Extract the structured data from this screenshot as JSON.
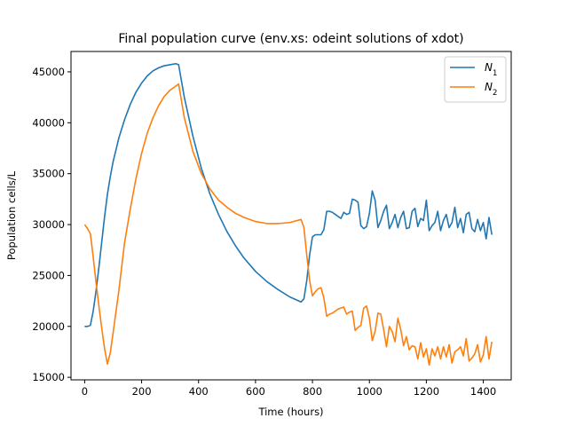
{
  "chart_data": {
    "type": "line",
    "title": "Final population curve (env.xs: odeint solutions of xdot)",
    "xlabel": "Time (hours)",
    "ylabel": "Population cells/L",
    "xlim": [
      -48,
      1498
    ],
    "ylim": [
      14750,
      47000
    ],
    "xticks": [
      0,
      200,
      400,
      600,
      800,
      1000,
      1200,
      1400
    ],
    "xtick_labels": [
      "0",
      "200",
      "400",
      "600",
      "800",
      "1000",
      "1200",
      "1400"
    ],
    "yticks": [
      15000,
      20000,
      25000,
      30000,
      35000,
      40000,
      45000
    ],
    "ytick_labels": [
      "15000",
      "20000",
      "25000",
      "30000",
      "35000",
      "40000",
      "45000"
    ],
    "grid": false,
    "legend_position": "top-right",
    "series": [
      {
        "name": "N",
        "subscript": "1",
        "color": "#1f77b4",
        "x": [
          0,
          10,
          20,
          30,
          40,
          50,
          60,
          70,
          80,
          90,
          100,
          120,
          140,
          160,
          180,
          200,
          220,
          240,
          260,
          280,
          300,
          320,
          330,
          350,
          380,
          410,
          440,
          470,
          500,
          530,
          560,
          600,
          640,
          680,
          720,
          760,
          770,
          780,
          790,
          800,
          810,
          820,
          830,
          840,
          850,
          860,
          870,
          880,
          890,
          900,
          910,
          920,
          930,
          940,
          950,
          960,
          970,
          980,
          990,
          1000,
          1010,
          1020,
          1030,
          1040,
          1050,
          1060,
          1070,
          1080,
          1090,
          1100,
          1110,
          1120,
          1130,
          1140,
          1150,
          1160,
          1170,
          1180,
          1190,
          1200,
          1210,
          1220,
          1230,
          1240,
          1250,
          1260,
          1270,
          1280,
          1290,
          1300,
          1310,
          1320,
          1330,
          1340,
          1350,
          1360,
          1370,
          1380,
          1390,
          1400,
          1410,
          1420,
          1430
        ],
        "y": [
          20000,
          20000,
          20100,
          21500,
          23500,
          25800,
          28300,
          30800,
          33000,
          34700,
          36200,
          38500,
          40300,
          41800,
          43000,
          43900,
          44600,
          45100,
          45400,
          45600,
          45700,
          45800,
          45700,
          42500,
          38700,
          35500,
          33000,
          31000,
          29300,
          27900,
          26700,
          25400,
          24400,
          23600,
          22900,
          22400,
          22700,
          24500,
          27000,
          28800,
          29000,
          29000,
          29000,
          29500,
          31300,
          31300,
          31200,
          31000,
          30800,
          30600,
          31200,
          31000,
          31100,
          32500,
          32400,
          32200,
          29900,
          29600,
          29800,
          31100,
          33300,
          32400,
          29700,
          30400,
          31300,
          31900,
          29600,
          30200,
          31000,
          29700,
          30700,
          31300,
          29600,
          29700,
          31300,
          31600,
          29800,
          30600,
          30400,
          32400,
          29400,
          29900,
          30200,
          31300,
          29400,
          30400,
          31000,
          29700,
          30200,
          31700,
          29700,
          30600,
          29200,
          31000,
          31200,
          29600,
          29300,
          30500,
          29400,
          30200,
          28600,
          30700,
          29000
        ]
      },
      {
        "name": "N",
        "subscript": "2",
        "color": "#ff7f0e",
        "x": [
          0,
          10,
          20,
          30,
          40,
          50,
          60,
          70,
          80,
          90,
          100,
          120,
          140,
          160,
          180,
          200,
          220,
          240,
          260,
          280,
          300,
          320,
          330,
          350,
          380,
          410,
          440,
          470,
          500,
          530,
          560,
          600,
          640,
          680,
          720,
          760,
          770,
          780,
          790,
          800,
          810,
          820,
          830,
          840,
          850,
          860,
          870,
          880,
          890,
          900,
          910,
          920,
          930,
          940,
          950,
          960,
          970,
          980,
          990,
          1000,
          1010,
          1020,
          1030,
          1040,
          1050,
          1060,
          1070,
          1080,
          1090,
          1100,
          1110,
          1120,
          1130,
          1140,
          1150,
          1160,
          1170,
          1180,
          1190,
          1200,
          1210,
          1220,
          1230,
          1240,
          1250,
          1260,
          1270,
          1280,
          1290,
          1300,
          1310,
          1320,
          1330,
          1340,
          1350,
          1360,
          1370,
          1380,
          1390,
          1400,
          1410,
          1420,
          1430
        ],
        "y": [
          30000,
          29600,
          29100,
          26800,
          24300,
          22000,
          19800,
          17800,
          16300,
          17400,
          19400,
          23500,
          28200,
          31500,
          34500,
          37000,
          39000,
          40500,
          41700,
          42600,
          43200,
          43600,
          43800,
          40500,
          37200,
          35000,
          33500,
          32400,
          31700,
          31100,
          30700,
          30300,
          30100,
          30100,
          30200,
          30500,
          29700,
          27000,
          24500,
          23000,
          23400,
          23700,
          23800,
          22800,
          21000,
          21200,
          21300,
          21500,
          21700,
          21800,
          21900,
          21200,
          21400,
          21500,
          19600,
          19900,
          20100,
          21800,
          22000,
          20800,
          18600,
          19500,
          21300,
          21200,
          19700,
          18000,
          20000,
          19500,
          18500,
          20800,
          19700,
          18100,
          19000,
          17700,
          18100,
          18000,
          16800,
          18400,
          17000,
          17800,
          16200,
          17800,
          17100,
          18000,
          16800,
          18000,
          17000,
          18200,
          16400,
          17500,
          17700,
          18000,
          17100,
          18800,
          16600,
          16900,
          17300,
          18200,
          16500,
          17200,
          19000,
          16800,
          18500
        ]
      }
    ]
  }
}
